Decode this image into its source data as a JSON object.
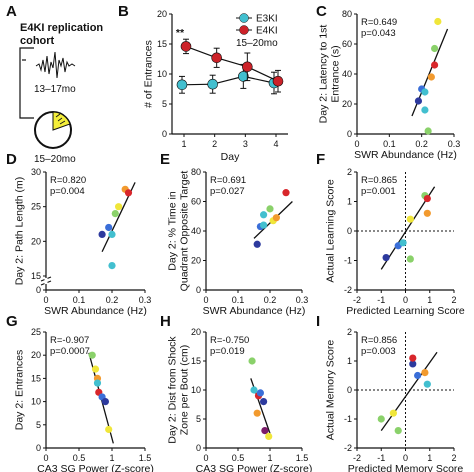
{
  "panelA": {
    "letter": "A",
    "title_line1": "E4KI replication",
    "title_line2": "cohort",
    "age1": "13–17mo",
    "age2": "15–20mo",
    "colors": {
      "pie_fill": "#f4ee3a",
      "stroke": "#111111"
    }
  },
  "colors": {
    "E3KI": "#42bfcf",
    "E4KI": "#cc2229",
    "points": [
      "#2d3a9e",
      "#3a6ed8",
      "#42bfcf",
      "#8ad16a",
      "#f0e63a",
      "#f29a2e",
      "#d8262b",
      "#7a1c6a",
      "#e8502c"
    ],
    "line": "#111111"
  },
  "chart_data": [
    {
      "letter": "B",
      "type": "line",
      "categories": [
        "1",
        "2",
        "3",
        "4"
      ],
      "series": [
        {
          "name": "E3KI",
          "values": [
            8.2,
            8.3,
            9.6,
            8.5
          ],
          "err": [
            1.4,
            1.5,
            2.0,
            1.8
          ]
        },
        {
          "name": "E4KI",
          "values": [
            14.6,
            12.7,
            11.2,
            8.8
          ],
          "err": [
            1.2,
            1.6,
            2.3,
            1.8
          ]
        }
      ],
      "xlabel": "Day",
      "ylabel": "# of Entrances",
      "ylim": [
        0,
        20
      ],
      "yticks": [
        0,
        5,
        10,
        15,
        20
      ],
      "annotation": "**",
      "legend_note": "15–20mo",
      "legend": "top-right"
    },
    {
      "letter": "C",
      "type": "scatter",
      "xlabel": "SWR Abundance (Hz)",
      "ylabel": "Day 2: Latency to 1st Entrance (s)",
      "xlim": [
        0,
        0.3
      ],
      "ylim": [
        0,
        80
      ],
      "xticks": [
        0,
        0.1,
        0.2,
        0.3
      ],
      "xtick_labels": [
        "0",
        "0.1",
        "0.2",
        "0.3"
      ],
      "yticks": [
        0,
        20,
        40,
        60,
        80
      ],
      "ytick_labels": [
        "0",
        "20",
        "40",
        "60",
        "80"
      ],
      "stats": [
        "R=0.649",
        "p=0.043"
      ],
      "points": [
        {
          "x": 0.19,
          "y": 22,
          "c": 0
        },
        {
          "x": 0.2,
          "y": 30,
          "c": 1
        },
        {
          "x": 0.21,
          "y": 16,
          "c": 2
        },
        {
          "x": 0.22,
          "y": 2,
          "c": 3
        },
        {
          "x": 0.25,
          "y": 75,
          "c": 4
        },
        {
          "x": 0.24,
          "y": 57,
          "c": 3
        },
        {
          "x": 0.23,
          "y": 38,
          "c": 5
        },
        {
          "x": 0.24,
          "y": 46,
          "c": 6
        },
        {
          "x": 0.21,
          "y": 28,
          "c": 2
        }
      ],
      "fit": [
        [
          0.17,
          12
        ],
        [
          0.28,
          70
        ]
      ]
    },
    {
      "letter": "D",
      "type": "scatter",
      "xlabel": "SWR Abundance (Hz)",
      "ylabel": "Day 2: Path Length (m)",
      "xlim": [
        0,
        0.3
      ],
      "ylim": [
        0,
        30
      ],
      "xticks": [
        0,
        0.1,
        0.2,
        0.3
      ],
      "xtick_labels": [
        "0",
        "0.1",
        "0.2",
        "0.3"
      ],
      "yticks": [
        0,
        15,
        20,
        25,
        30
      ],
      "ytick_labels": [
        "0",
        "15",
        "20",
        "25",
        "30"
      ],
      "axis_break": true,
      "stats": [
        "R=0.820",
        "p=0.004"
      ],
      "points": [
        {
          "x": 0.17,
          "y": 21,
          "c": 0
        },
        {
          "x": 0.19,
          "y": 22,
          "c": 1
        },
        {
          "x": 0.2,
          "y": 16.5,
          "c": 2
        },
        {
          "x": 0.21,
          "y": 24,
          "c": 3
        },
        {
          "x": 0.22,
          "y": 25,
          "c": 4
        },
        {
          "x": 0.24,
          "y": 27.5,
          "c": 5
        },
        {
          "x": 0.25,
          "y": 27,
          "c": 6
        },
        {
          "x": 0.2,
          "y": 21,
          "c": 2
        }
      ],
      "fit": [
        [
          0.17,
          18.5
        ],
        [
          0.27,
          28.5
        ]
      ]
    },
    {
      "letter": "E",
      "type": "scatter",
      "xlabel": "SWR Abundance (Hz)",
      "ylabel": "Day 2: % Time in Quadrant Opposite Target",
      "xlim": [
        0,
        0.3
      ],
      "ylim": [
        0,
        80
      ],
      "xticks": [
        0,
        0.1,
        0.2,
        0.3
      ],
      "xtick_labels": [
        "0",
        "0.1",
        "0.2",
        "0.3"
      ],
      "yticks": [
        0,
        20,
        40,
        60,
        80
      ],
      "ytick_labels": [
        "0",
        "20",
        "40",
        "60",
        "80"
      ],
      "stats": [
        "R=0.691",
        "p=0.027"
      ],
      "points": [
        {
          "x": 0.16,
          "y": 31,
          "c": 0
        },
        {
          "x": 0.17,
          "y": 43,
          "c": 1
        },
        {
          "x": 0.18,
          "y": 51,
          "c": 2
        },
        {
          "x": 0.2,
          "y": 55,
          "c": 3
        },
        {
          "x": 0.21,
          "y": 47,
          "c": 4
        },
        {
          "x": 0.22,
          "y": 49,
          "c": 5
        },
        {
          "x": 0.25,
          "y": 66,
          "c": 6
        },
        {
          "x": 0.18,
          "y": 44,
          "c": 2
        }
      ],
      "fit": [
        [
          0.15,
          35
        ],
        [
          0.27,
          60
        ]
      ]
    },
    {
      "letter": "F",
      "type": "scatter",
      "xlabel": "Predicted Learning Score",
      "ylabel": "Actual Learning Score",
      "xlim": [
        -2,
        2
      ],
      "ylim": [
        -2,
        2
      ],
      "xticks": [
        -2,
        -1,
        0,
        1,
        2
      ],
      "xtick_labels": [
        "-2",
        "-1",
        "0",
        "1",
        "2"
      ],
      "yticks": [
        -2,
        -1,
        0,
        1,
        2
      ],
      "ytick_labels": [
        "-2",
        "-1",
        "0",
        "1",
        "2"
      ],
      "dashed_zero": true,
      "stats": [
        "R=0.865",
        "p=0.001"
      ],
      "points": [
        {
          "x": -0.8,
          "y": -0.9,
          "c": 0
        },
        {
          "x": -0.3,
          "y": -0.5,
          "c": 1
        },
        {
          "x": -0.1,
          "y": -0.4,
          "c": 2
        },
        {
          "x": 0.2,
          "y": -0.95,
          "c": 3
        },
        {
          "x": 0.2,
          "y": 0.4,
          "c": 4
        },
        {
          "x": 0.8,
          "y": 1.2,
          "c": 3
        },
        {
          "x": 0.9,
          "y": 0.6,
          "c": 5
        },
        {
          "x": 0.9,
          "y": 1.1,
          "c": 6
        }
      ],
      "fit": [
        [
          -1.0,
          -1.3
        ],
        [
          1.2,
          1.5
        ]
      ]
    },
    {
      "letter": "G",
      "type": "scatter",
      "xlabel": "CA3 SG Power (Z-score)",
      "ylabel": "Day 2: Entrances",
      "xlim": [
        0,
        1.5
      ],
      "ylim": [
        0,
        25
      ],
      "xticks": [
        0,
        0.5,
        1,
        1.5
      ],
      "xtick_labels": [
        "0",
        "0.5",
        "1",
        "1.5"
      ],
      "yticks": [
        0,
        5,
        10,
        15,
        20,
        25
      ],
      "ytick_labels": [
        "0",
        "5",
        "10",
        "15",
        "20",
        "25"
      ],
      "stats": [
        "R=-0.907",
        "p=0.0007"
      ],
      "points": [
        {
          "x": 0.7,
          "y": 20,
          "c": 3
        },
        {
          "x": 0.75,
          "y": 17,
          "c": 4
        },
        {
          "x": 0.78,
          "y": 15,
          "c": 5
        },
        {
          "x": 0.78,
          "y": 14,
          "c": 2
        },
        {
          "x": 0.8,
          "y": 12,
          "c": 6
        },
        {
          "x": 0.85,
          "y": 11,
          "c": 1
        },
        {
          "x": 0.9,
          "y": 10,
          "c": 0
        },
        {
          "x": 0.95,
          "y": 4,
          "c": 4
        }
      ],
      "fit": [
        [
          0.65,
          20.5
        ],
        [
          1.02,
          1.0
        ]
      ]
    },
    {
      "letter": "H",
      "type": "scatter",
      "xlabel": "CA3 SG Power (Z-score)",
      "ylabel": "Day 2: Dist from Shock Zone per Bout (cm)",
      "xlim": [
        0,
        1.5
      ],
      "ylim": [
        0,
        20
      ],
      "xticks": [
        0,
        0.5,
        1,
        1.5
      ],
      "xtick_labels": [
        "0",
        "0.5",
        "1",
        "1.5"
      ],
      "yticks": [
        0,
        5,
        10,
        15,
        20
      ],
      "ytick_labels": [
        "0",
        "5",
        "10",
        "15",
        "20"
      ],
      "stats": [
        "R=-0.750",
        "p=0.019"
      ],
      "points": [
        {
          "x": 0.72,
          "y": 15,
          "c": 3
        },
        {
          "x": 0.75,
          "y": 10,
          "c": 2
        },
        {
          "x": 0.8,
          "y": 6,
          "c": 5
        },
        {
          "x": 0.82,
          "y": 9,
          "c": 6
        },
        {
          "x": 0.85,
          "y": 9.5,
          "c": 1
        },
        {
          "x": 0.9,
          "y": 8,
          "c": 0
        },
        {
          "x": 0.92,
          "y": 3,
          "c": 7
        },
        {
          "x": 0.98,
          "y": 2,
          "c": 4
        }
      ],
      "fit": [
        [
          0.7,
          12
        ],
        [
          1.0,
          2.5
        ]
      ]
    },
    {
      "letter": "I",
      "type": "scatter",
      "xlabel": "Predicted Memory Score",
      "ylabel": "Actual Memory Score",
      "xlim": [
        -2,
        2
      ],
      "ylim": [
        -2,
        2
      ],
      "xticks": [
        -2,
        -1,
        0,
        1,
        2
      ],
      "xtick_labels": [
        "-2",
        "-1",
        "0",
        "1",
        "2"
      ],
      "yticks": [
        -2,
        -1,
        0,
        1,
        2
      ],
      "ytick_labels": [
        "-2",
        "-1",
        "0",
        "1",
        "2"
      ],
      "dashed_zero": true,
      "stats": [
        "R=0.856",
        "p=0.003"
      ],
      "points": [
        {
          "x": -1.0,
          "y": -1.0,
          "c": 3
        },
        {
          "x": -0.5,
          "y": -0.8,
          "c": 4
        },
        {
          "x": -0.3,
          "y": -1.4,
          "c": 3
        },
        {
          "x": 0.3,
          "y": 0.9,
          "c": 0
        },
        {
          "x": 0.3,
          "y": 1.1,
          "c": 6
        },
        {
          "x": 0.5,
          "y": 0.5,
          "c": 1
        },
        {
          "x": 0.8,
          "y": 0.6,
          "c": 5
        },
        {
          "x": 0.9,
          "y": 0.2,
          "c": 2
        }
      ],
      "fit": [
        [
          -1.0,
          -1.4
        ],
        [
          1.3,
          1.3
        ]
      ]
    }
  ]
}
